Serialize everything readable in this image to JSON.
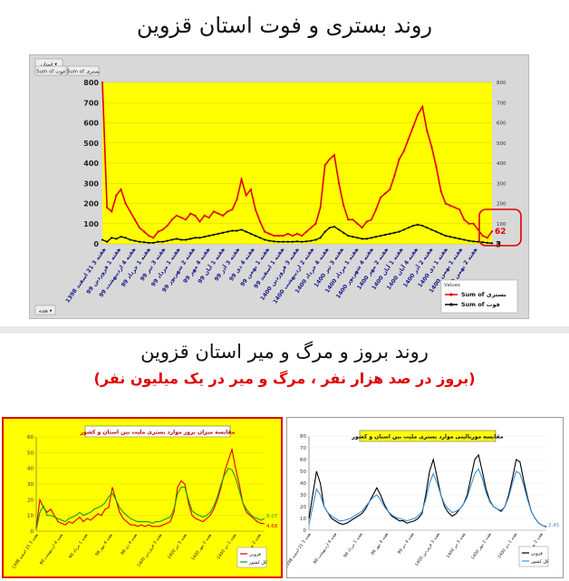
{
  "top_section": {
    "title": "روند بستری و فوت استان قزوین"
  },
  "bottom_section": {
    "title": "روند بروز و مرگ و میر استان قزوین",
    "subtitle": "(بروز در صد هزار نفر ، مرگ و میر در یک میلیون نفر)"
  },
  "colors": {
    "plot_yellow": "#ffff00",
    "red_series": "#e00000",
    "black_series": "#000000",
    "green_series": "#1a9a1a",
    "blue_series": "#3b8fd6",
    "highlight_box": "#e00000"
  },
  "chart_data": [
    {
      "type": "line",
      "toolbar": {
        "filter_button": "استان ▾",
        "field_button_1": "Sum of بستری",
        "field_button_2": "Sum of فوت",
        "week_button": "هفته ▾"
      },
      "x_tick_labels": [
        "هفته 3 21 اسفند 1398",
        "هفته 1 فروردین 99",
        "هفته 4 اردیبهشت 99",
        "هفته 1 خرداد 99",
        "هفته 3 تیر 99",
        "هفته 1 مرداد 99",
        "هفته 2 شهریور 99",
        "هفته 4 مهر 99",
        "هفته 1 آبان 99",
        "هفته 3 آذر 99",
        "هفته 4 دی 99",
        "هفته 1 بهمن 99",
        "هفته 1 اسفند 99",
        "هفته 3 فروردین 1400",
        "هفته 2 اردیبهشت 1400",
        "هفته 4 خرداد 1400",
        "هفته 3 تیر 1400",
        "هفته 1 مرداد 1400",
        "هفته 4 شهریور 1400",
        "هفته 2 مهر 1400",
        "هفته 1 آبان 1400",
        "هفته 4 آبان 1400",
        "هفته 2 آذر 1400",
        "هفته 1 دی 1400",
        "هفته 1 بهمن 1400",
        "هفته 2 بهمن 1400"
      ],
      "ylim": [
        0,
        800
      ],
      "y_ticks": [
        0,
        100,
        200,
        300,
        400,
        500,
        600,
        700,
        800
      ],
      "y2_ticks": [
        0,
        100,
        200,
        300,
        400,
        500,
        600,
        700,
        800
      ],
      "legend_title": "Values",
      "legend_position": "bottom-right",
      "series": [
        {
          "name": "Sum of بستری",
          "color": "#e00000",
          "values": [
            800,
            180,
            160,
            240,
            270,
            200,
            160,
            120,
            80,
            60,
            40,
            30,
            60,
            70,
            90,
            120,
            140,
            130,
            120,
            150,
            140,
            110,
            140,
            130,
            160,
            150,
            140,
            160,
            170,
            220,
            320,
            240,
            270,
            170,
            110,
            60,
            50,
            40,
            40,
            40,
            50,
            40,
            50,
            40,
            60,
            80,
            100,
            180,
            390,
            420,
            440,
            300,
            190,
            120,
            120,
            100,
            80,
            110,
            120,
            170,
            230,
            250,
            270,
            340,
            420,
            460,
            520,
            580,
            640,
            680,
            560,
            480,
            380,
            260,
            200,
            190,
            180,
            170,
            120,
            100,
            100,
            70,
            40,
            30,
            62
          ],
          "end_label": "62"
        },
        {
          "name": "Sum of فوت",
          "color": "#000000",
          "values": [
            20,
            10,
            30,
            25,
            35,
            30,
            20,
            15,
            10,
            8,
            5,
            5,
            10,
            10,
            15,
            20,
            25,
            20,
            20,
            25,
            30,
            30,
            35,
            40,
            45,
            50,
            55,
            60,
            65,
            65,
            70,
            60,
            50,
            40,
            30,
            20,
            15,
            12,
            10,
            10,
            10,
            10,
            12,
            10,
            12,
            15,
            20,
            30,
            60,
            80,
            85,
            70,
            55,
            40,
            35,
            30,
            25,
            25,
            30,
            35,
            40,
            45,
            50,
            55,
            60,
            70,
            80,
            90,
            95,
            90,
            80,
            70,
            60,
            50,
            40,
            35,
            30,
            25,
            20,
            15,
            12,
            10,
            8,
            5,
            3
          ],
          "end_label": "3"
        }
      ]
    },
    {
      "type": "line",
      "title": "مقایسه میزان بروز موارد بستری ملیت بین استان و کشور",
      "ylim": [
        0,
        60
      ],
      "y_ticks": [
        0,
        10,
        20,
        30,
        40,
        50,
        60
      ],
      "legend_position": "bottom-right",
      "series": [
        {
          "name": "قزوین",
          "color": "#e00000",
          "values": [
            2,
            20,
            15,
            12,
            14,
            10,
            6,
            5,
            4,
            6,
            5,
            7,
            9,
            6,
            8,
            7,
            9,
            11,
            10,
            14,
            15,
            28,
            20,
            12,
            8,
            6,
            4,
            4,
            3,
            4,
            3,
            4,
            3,
            3,
            3,
            4,
            5,
            6,
            12,
            28,
            32,
            30,
            18,
            10,
            8,
            7,
            6,
            8,
            10,
            14,
            20,
            28,
            38,
            45,
            52,
            40,
            30,
            18,
            12,
            10,
            8,
            6,
            5,
            4.68
          ],
          "end_label": "4.68"
        },
        {
          "name": "کل کشور",
          "color": "#1a9a1a",
          "values": [
            1,
            12,
            16,
            10,
            10,
            9,
            8,
            7,
            6,
            8,
            9,
            10,
            12,
            10,
            11,
            12,
            14,
            15,
            16,
            18,
            22,
            24,
            20,
            15,
            12,
            10,
            8,
            7,
            6,
            6,
            6,
            6,
            5,
            6,
            6,
            7,
            8,
            9,
            14,
            24,
            28,
            28,
            20,
            13,
            11,
            10,
            9,
            10,
            12,
            16,
            22,
            30,
            36,
            40,
            39,
            34,
            26,
            18,
            14,
            11,
            9,
            8,
            7,
            8.07
          ],
          "end_label": "8.07"
        }
      ],
      "x_tick_labels": [
        "هفته 3 21 اسفند 1398",
        "هفته 4 اردیبهشت 99",
        "هفته 1 مرداد 99",
        "هفته 4 مهر 99",
        "هفته 4 دی 99",
        "هفته 3 فروردین 1400",
        "هفته 3 تیر 1400",
        "هفته 2 مهر 1400",
        "هفته 1 دی 1400",
        "هفته 2 بهمن 1400"
      ]
    },
    {
      "type": "line",
      "title": "مقایسه مورتالیتی موارد بستری ملیت بین استان و کشور",
      "ylim": [
        0,
        80
      ],
      "y_ticks": [
        0,
        10,
        20,
        30,
        40,
        50,
        60,
        70,
        80
      ],
      "legend_position": "bottom-right",
      "series": [
        {
          "name": "قزوین",
          "color": "#000000",
          "values": [
            10,
            30,
            50,
            40,
            20,
            15,
            10,
            8,
            6,
            5,
            6,
            8,
            10,
            12,
            14,
            18,
            24,
            30,
            36,
            30,
            22,
            16,
            12,
            10,
            8,
            8,
            6,
            7,
            8,
            10,
            14,
            30,
            50,
            60,
            45,
            30,
            20,
            15,
            12,
            14,
            18,
            22,
            30,
            45,
            60,
            64,
            50,
            35,
            25,
            20,
            18,
            16,
            20,
            30,
            44,
            60,
            58,
            42,
            28,
            16,
            10,
            6,
            4,
            3
          ],
          "end_label": ""
        },
        {
          "name": "کل کشور",
          "color": "#3b8fd6",
          "values": [
            5,
            20,
            35,
            30,
            20,
            15,
            12,
            10,
            8,
            8,
            9,
            10,
            12,
            14,
            16,
            20,
            24,
            28,
            30,
            26,
            20,
            16,
            13,
            11,
            10,
            9,
            8,
            9,
            10,
            12,
            16,
            26,
            40,
            48,
            40,
            30,
            22,
            18,
            15,
            16,
            18,
            22,
            28,
            38,
            48,
            52,
            44,
            32,
            24,
            20,
            18,
            17,
            20,
            28,
            40,
            50,
            48,
            38,
            26,
            16,
            10,
            6,
            4,
            2.45
          ],
          "end_label": "2.45"
        }
      ],
      "x_tick_labels": [
        "هفته 3 21 اسفند 1398",
        "هفته 4 اردیبهشت 99",
        "هفته 1 مرداد 99",
        "هفته 4 مهر 99",
        "هفته 4 دی 99",
        "هفته 3 فروردین 1400",
        "هفته 3 تیر 1400",
        "هفته 2 مهر 1400",
        "هفته 1 دی 1400",
        "هفته 2 بهمن 1400"
      ]
    }
  ]
}
